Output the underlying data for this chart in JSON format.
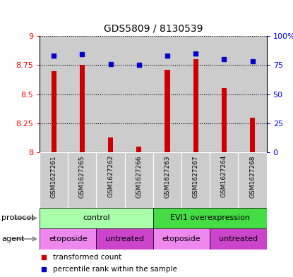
{
  "title": "GDS5809 / 8130539",
  "samples": [
    "GSM1627261",
    "GSM1627265",
    "GSM1627262",
    "GSM1627266",
    "GSM1627263",
    "GSM1627267",
    "GSM1627264",
    "GSM1627268"
  ],
  "transformed_counts": [
    8.7,
    8.75,
    8.13,
    8.05,
    8.71,
    8.8,
    8.55,
    8.3
  ],
  "percentile_ranks": [
    83,
    84,
    76,
    75,
    83,
    85,
    80,
    78
  ],
  "ylim_left": [
    8.0,
    9.0
  ],
  "ylim_right": [
    0,
    100
  ],
  "yticks_left": [
    8.0,
    8.25,
    8.5,
    8.75,
    9.0
  ],
  "yticks_right": [
    0,
    25,
    50,
    75,
    100
  ],
  "ytick_labels_left": [
    "8",
    "8.25",
    "8.5",
    "8.75",
    "9"
  ],
  "ytick_labels_right": [
    "0",
    "25",
    "50",
    "75",
    "100%"
  ],
  "bar_color": "#cc0000",
  "dot_color": "#0000cc",
  "grid_color": "#000000",
  "protocol_groups": [
    {
      "label": "control",
      "start": 0,
      "end": 4,
      "color": "#aaffaa"
    },
    {
      "label": "EVI1 overexpression",
      "start": 4,
      "end": 8,
      "color": "#44dd44"
    }
  ],
  "agent_groups": [
    {
      "label": "etoposide",
      "start": 0,
      "end": 2,
      "color": "#ee88ee"
    },
    {
      "label": "untreated",
      "start": 2,
      "end": 4,
      "color": "#cc44cc"
    },
    {
      "label": "etoposide",
      "start": 4,
      "end": 6,
      "color": "#ee88ee"
    },
    {
      "label": "untreated",
      "start": 6,
      "end": 8,
      "color": "#cc44cc"
    }
  ],
  "protocol_label": "protocol",
  "agent_label": "agent",
  "legend_red": "transformed count",
  "legend_blue": "percentile rank within the sample",
  "bar_width": 0.18,
  "sample_bg_color": "#cccccc",
  "plot_bg_color": "#ffffff"
}
